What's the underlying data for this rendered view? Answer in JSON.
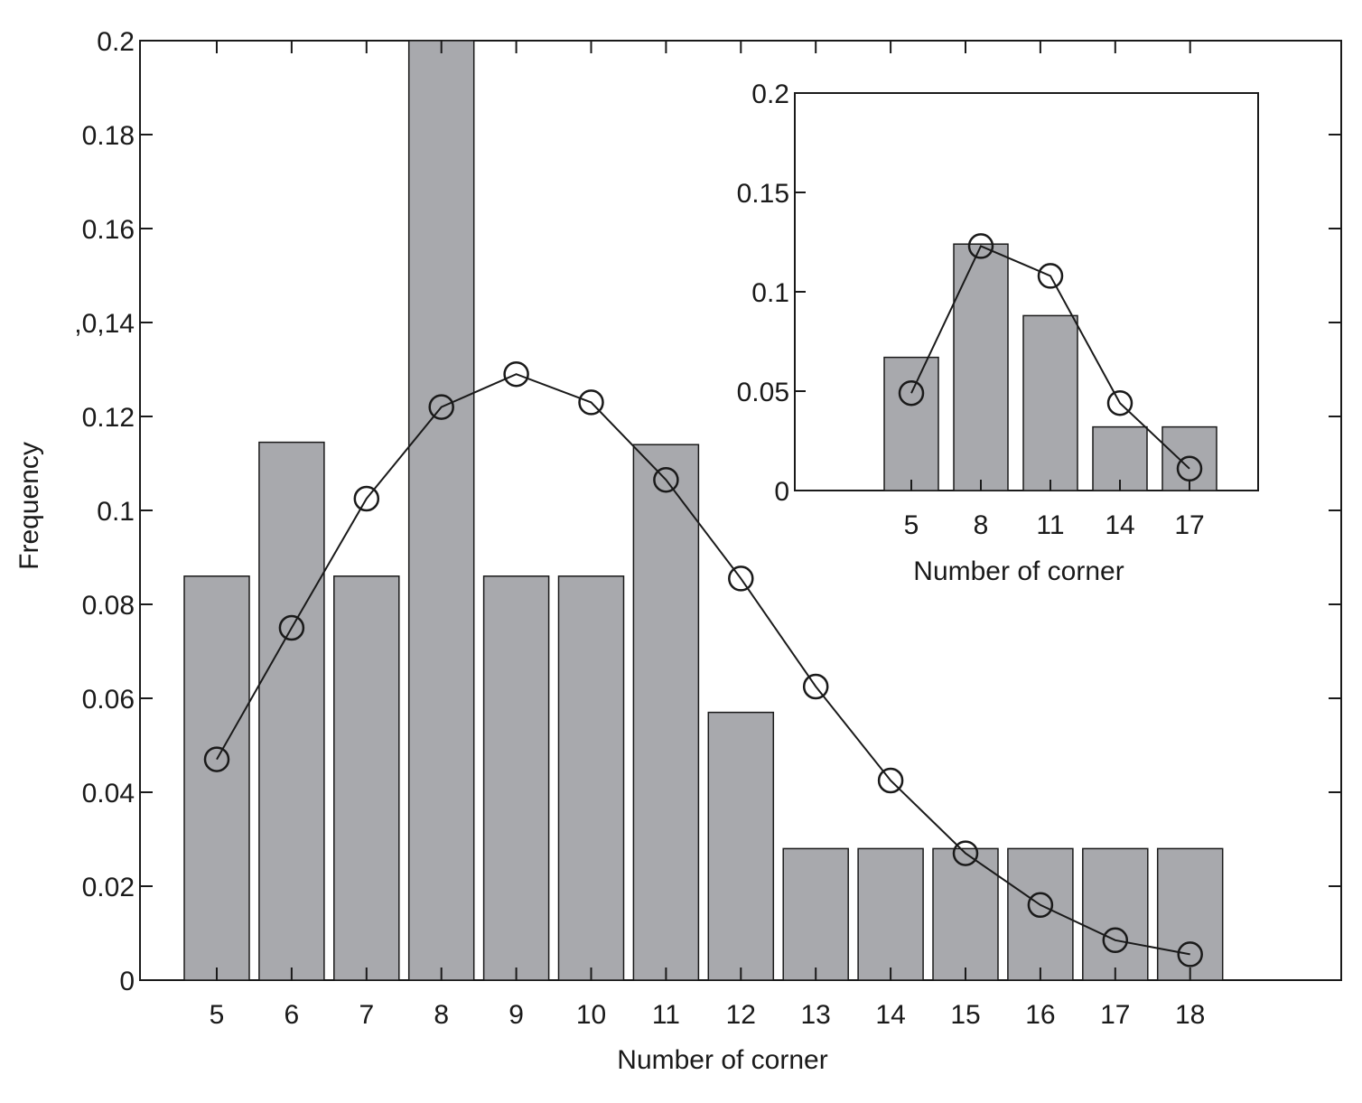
{
  "chart_data": [
    {
      "type": "bar",
      "xlabel": "Number of corner",
      "ylabel": "Frequency",
      "categories": [
        "5",
        "6",
        "7",
        "8",
        "9",
        "10",
        "11",
        "12",
        "13",
        "14",
        "15",
        "16",
        "17",
        "18"
      ],
      "bar_values": [
        0.086,
        0.1145,
        0.086,
        0.2,
        0.086,
        0.086,
        0.114,
        0.057,
        0.028,
        0.028,
        0.028,
        0.028,
        0.028,
        0.028
      ],
      "line_values": [
        0.047,
        0.075,
        0.1025,
        0.122,
        0.129,
        0.123,
        0.1065,
        0.0855,
        0.0625,
        0.0425,
        0.027,
        0.016,
        0.0085,
        0.0055
      ],
      "ylim": [
        0,
        0.2
      ],
      "yticks": [
        "0",
        "0.02",
        "0.04",
        "0.06",
        "0.08",
        "0.1",
        "0.12",
        ",0,14",
        "0.16",
        "0.18",
        "0.2"
      ],
      "bar_color": "#a8a9ad",
      "line_color": "#1a1a1a",
      "marker": "open-circle",
      "grid": false
    },
    {
      "type": "bar",
      "position": "inset-top-right",
      "xlabel": "Number of corner",
      "ylabel": "",
      "categories": [
        "5",
        "8",
        "11",
        "14",
        "17"
      ],
      "bar_values": [
        0.067,
        0.124,
        0.088,
        0.032,
        0.032
      ],
      "line_values": [
        0.049,
        0.123,
        0.108,
        0.044,
        0.011
      ],
      "ylim": [
        0,
        0.2
      ],
      "yticks": [
        "0",
        "0.05",
        "0.1",
        "0.15",
        "0.2"
      ],
      "bar_color": "#a8a9ad",
      "line_color": "#1a1a1a",
      "marker": "open-circle",
      "grid": false
    }
  ]
}
